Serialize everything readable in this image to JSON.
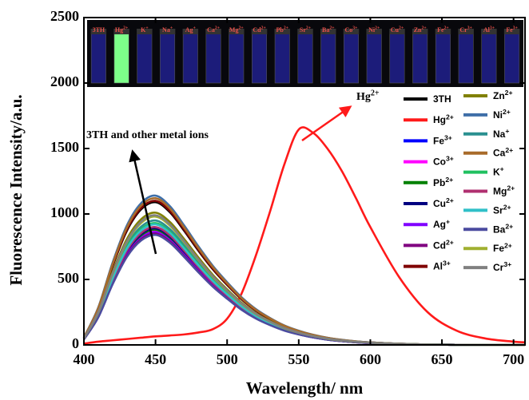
{
  "chart_data": {
    "type": "line",
    "xlabel": "Wavelength/ nm",
    "ylabel": "Fluorescence Intensity/a.u.",
    "xlim": [
      400,
      708
    ],
    "ylim": [
      0,
      2500
    ],
    "xticks": [
      400,
      450,
      500,
      550,
      600,
      650,
      700
    ],
    "yticks": [
      0,
      500,
      1000,
      1500,
      2000,
      2500
    ],
    "annotations": [
      "3TH and other metal ions",
      "Hg2+"
    ],
    "photo_labels": [
      "3TH",
      "Hg2+",
      "K+",
      "Na+",
      "Ag+",
      "Ca2+",
      "Mg2+",
      "Cd2+",
      "Pb2+",
      "Sr2+",
      "Ba2+",
      "Co3+",
      "Ni2+",
      "Cu2+",
      "Zn2+",
      "Fe2+",
      "Cr3+",
      "Al3+",
      "Fe3+"
    ],
    "x": [
      400,
      410,
      420,
      430,
      440,
      450,
      460,
      470,
      480,
      490,
      500,
      510,
      520,
      530,
      540,
      550,
      560,
      570,
      580,
      590,
      600,
      620,
      640,
      660,
      680,
      700,
      708
    ],
    "series": [
      {
        "name": "3TH",
        "color": "#000000",
        "values": [
          55,
          273,
          600,
          872,
          1036,
          1090,
          1014,
          872,
          719,
          578,
          458,
          349,
          262,
          196,
          142,
          104,
          74,
          52,
          37,
          26,
          19,
          9,
          3,
          1,
          0,
          0,
          0
        ]
      },
      {
        "name": "Hg2+",
        "color": "#ff1a1a",
        "values": [
          10,
          25,
          35,
          45,
          55,
          65,
          72,
          80,
          95,
          120,
          200,
          390,
          680,
          1020,
          1380,
          1645,
          1620,
          1500,
          1330,
          1120,
          900,
          520,
          250,
          110,
          50,
          25,
          20
        ]
      },
      {
        "name": "Fe3+",
        "color": "#0000ff",
        "values": [
          43,
          215,
          473,
          688,
          817,
          860,
          800,
          688,
          568,
          456,
          361,
          275,
          206,
          155,
          112,
          82,
          58,
          41,
          29,
          21,
          15,
          7,
          3,
          1,
          0,
          0,
          0
        ]
      },
      {
        "name": "Co3+",
        "color": "#ff00ff",
        "values": [
          44,
          218,
          479,
          696,
          827,
          870,
          809,
          696,
          574,
          461,
          365,
          278,
          209,
          157,
          113,
          83,
          59,
          42,
          30,
          21,
          15,
          7,
          3,
          1,
          0,
          0,
          0
        ]
      },
      {
        "name": "Pb2+",
        "color": "#008000",
        "values": [
          44,
          220,
          484,
          704,
          836,
          880,
          818,
          704,
          581,
          466,
          370,
          282,
          211,
          158,
          114,
          84,
          60,
          42,
          30,
          21,
          15,
          7,
          3,
          1,
          0,
          0,
          0
        ]
      },
      {
        "name": "Cu2+",
        "color": "#000080",
        "values": [
          45,
          223,
          490,
          712,
          846,
          890,
          828,
          712,
          587,
          472,
          374,
          285,
          214,
          160,
          116,
          85,
          61,
          43,
          30,
          21,
          15,
          7,
          3,
          1,
          0,
          0,
          0
        ]
      },
      {
        "name": "Ag+",
        "color": "#8000ff",
        "values": [
          43,
          215,
          473,
          688,
          817,
          860,
          800,
          688,
          568,
          456,
          361,
          275,
          206,
          155,
          112,
          82,
          58,
          41,
          29,
          21,
          15,
          7,
          3,
          1,
          0,
          0,
          0
        ]
      },
      {
        "name": "Cd2+",
        "color": "#800080",
        "values": [
          43,
          213,
          468,
          680,
          808,
          850,
          791,
          680,
          561,
          451,
          357,
          272,
          204,
          153,
          111,
          81,
          58,
          41,
          29,
          20,
          14,
          7,
          3,
          1,
          0,
          0,
          0
        ]
      },
      {
        "name": "Al3+",
        "color": "#800000",
        "values": [
          55,
          275,
          605,
          880,
          1045,
          1100,
          1023,
          880,
          726,
          583,
          462,
          352,
          264,
          198,
          143,
          105,
          75,
          53,
          37,
          26,
          19,
          9,
          3,
          1,
          0,
          0,
          0
        ]
      },
      {
        "name": "Zn2+",
        "color": "#808000",
        "values": [
          51,
          253,
          556,
          808,
          960,
          1010,
          939,
          808,
          667,
          535,
          424,
          323,
          242,
          182,
          131,
          96,
          69,
          48,
          34,
          24,
          17,
          8,
          3,
          1,
          0,
          0,
          0
        ]
      },
      {
        "name": "Ni2+",
        "color": "#3f6fa8",
        "values": [
          57,
          285,
          627,
          912,
          1083,
          1140,
          1060,
          912,
          752,
          604,
          479,
          365,
          274,
          205,
          148,
          108,
          78,
          55,
          39,
          27,
          19,
          9,
          3,
          1,
          0,
          0,
          0
        ]
      },
      {
        "name": "Na+",
        "color": "#2a9090",
        "values": [
          48,
          238,
          523,
          760,
          903,
          950,
          884,
          760,
          627,
          504,
          399,
          304,
          228,
          171,
          124,
          90,
          65,
          46,
          32,
          23,
          16,
          8,
          3,
          1,
          0,
          0,
          0
        ]
      },
      {
        "name": "Ca2+",
        "color": "#a86b2a",
        "values": [
          56,
          280,
          616,
          896,
          1064,
          1120,
          1042,
          896,
          739,
          594,
          470,
          358,
          269,
          202,
          146,
          106,
          76,
          54,
          38,
          27,
          19,
          9,
          3,
          1,
          0,
          0,
          0
        ]
      },
      {
        "name": "K+",
        "color": "#20c060",
        "values": [
          47,
          233,
          512,
          744,
          884,
          930,
          865,
          744,
          614,
          493,
          391,
          298,
          223,
          167,
          121,
          88,
          63,
          45,
          32,
          22,
          16,
          7,
          3,
          1,
          0,
          0,
          0
        ]
      },
      {
        "name": "Mg2+",
        "color": "#b03070",
        "values": [
          45,
          225,
          495,
          720,
          855,
          900,
          837,
          720,
          594,
          477,
          378,
          288,
          216,
          162,
          117,
          86,
          61,
          43,
          31,
          22,
          15,
          7,
          3,
          1,
          0,
          0,
          0
        ]
      },
      {
        "name": "Sr2+",
        "color": "#30c0c8",
        "values": [
          46,
          230,
          506,
          736,
          874,
          920,
          856,
          736,
          607,
          488,
          386,
          294,
          221,
          166,
          120,
          87,
          63,
          44,
          31,
          22,
          16,
          7,
          3,
          1,
          0,
          0,
          0
        ]
      },
      {
        "name": "Ba2+",
        "color": "#4b4b9f",
        "values": [
          42,
          210,
          462,
          672,
          798,
          840,
          781,
          672,
          554,
          445,
          353,
          269,
          202,
          151,
          109,
          80,
          57,
          40,
          29,
          20,
          14,
          7,
          3,
          1,
          0,
          0,
          0
        ]
      },
      {
        "name": "Fe2+",
        "color": "#a0b030",
        "values": [
          49,
          245,
          539,
          784,
          931,
          980,
          911,
          784,
          647,
          519,
          412,
          314,
          235,
          176,
          127,
          93,
          67,
          47,
          33,
          24,
          17,
          8,
          3,
          1,
          0,
          0,
          0
        ]
      },
      {
        "name": "Cr3+",
        "color": "#808080",
        "values": [
          50,
          248,
          545,
          792,
          941,
          990,
          921,
          792,
          653,
          525,
          416,
          317,
          238,
          178,
          129,
          94,
          67,
          48,
          34,
          24,
          17,
          8,
          3,
          1,
          0,
          0,
          0
        ]
      }
    ]
  }
}
